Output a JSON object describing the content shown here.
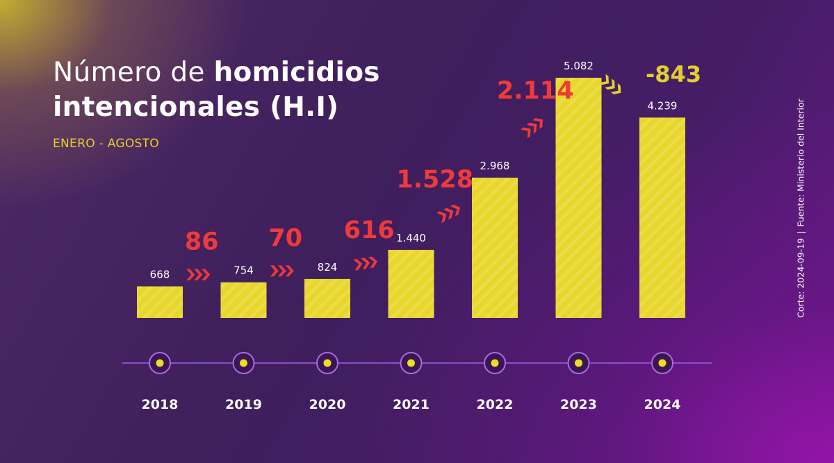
{
  "header": {
    "title_regular": "Número de ",
    "title_bold_1": "homicidios",
    "title_bold_2": "intencionales (H.I)",
    "subtitle": "ENERO - AGOSTO"
  },
  "source": {
    "cut_date": "Corte: 2024-09-19",
    "separator": "|",
    "source_text": "Fuente: Ministerio del Interior"
  },
  "colors": {
    "bar": "#e8d62a",
    "increase": "#f03a3a",
    "decrease": "#e2cf2f",
    "timeline_line": "#8c4cc6",
    "timeline_dot": "#f0dd1f",
    "timeline_ring": "#ab6ce0",
    "text": "#ffffff"
  },
  "chart_data": {
    "type": "bar",
    "categories": [
      "2018",
      "2019",
      "2020",
      "2021",
      "2022",
      "2023",
      "2024"
    ],
    "values": [
      668,
      754,
      824,
      1440,
      2968,
      5082,
      4239
    ],
    "value_labels": [
      "668",
      "754",
      "824",
      "1.440",
      "2.968",
      "5.082",
      "4.239"
    ],
    "changes": [
      {
        "label": "86",
        "direction": "up",
        "color": "#f03a3a"
      },
      {
        "label": "70",
        "direction": "up",
        "color": "#f03a3a"
      },
      {
        "label": "616",
        "direction": "up",
        "color": "#f03a3a"
      },
      {
        "label": "1.528",
        "direction": "up",
        "color": "#f03a3a"
      },
      {
        "label": "2.114",
        "direction": "up",
        "color": "#f03a3a"
      },
      {
        "label": "-843",
        "direction": "down",
        "color": "#e2cf2f"
      }
    ],
    "title": "Número de homicidios intencionales (H.I)",
    "subtitle": "ENERO - AGOSTO",
    "ylim": [
      0,
      5082
    ],
    "grid": false,
    "legend": "none"
  }
}
